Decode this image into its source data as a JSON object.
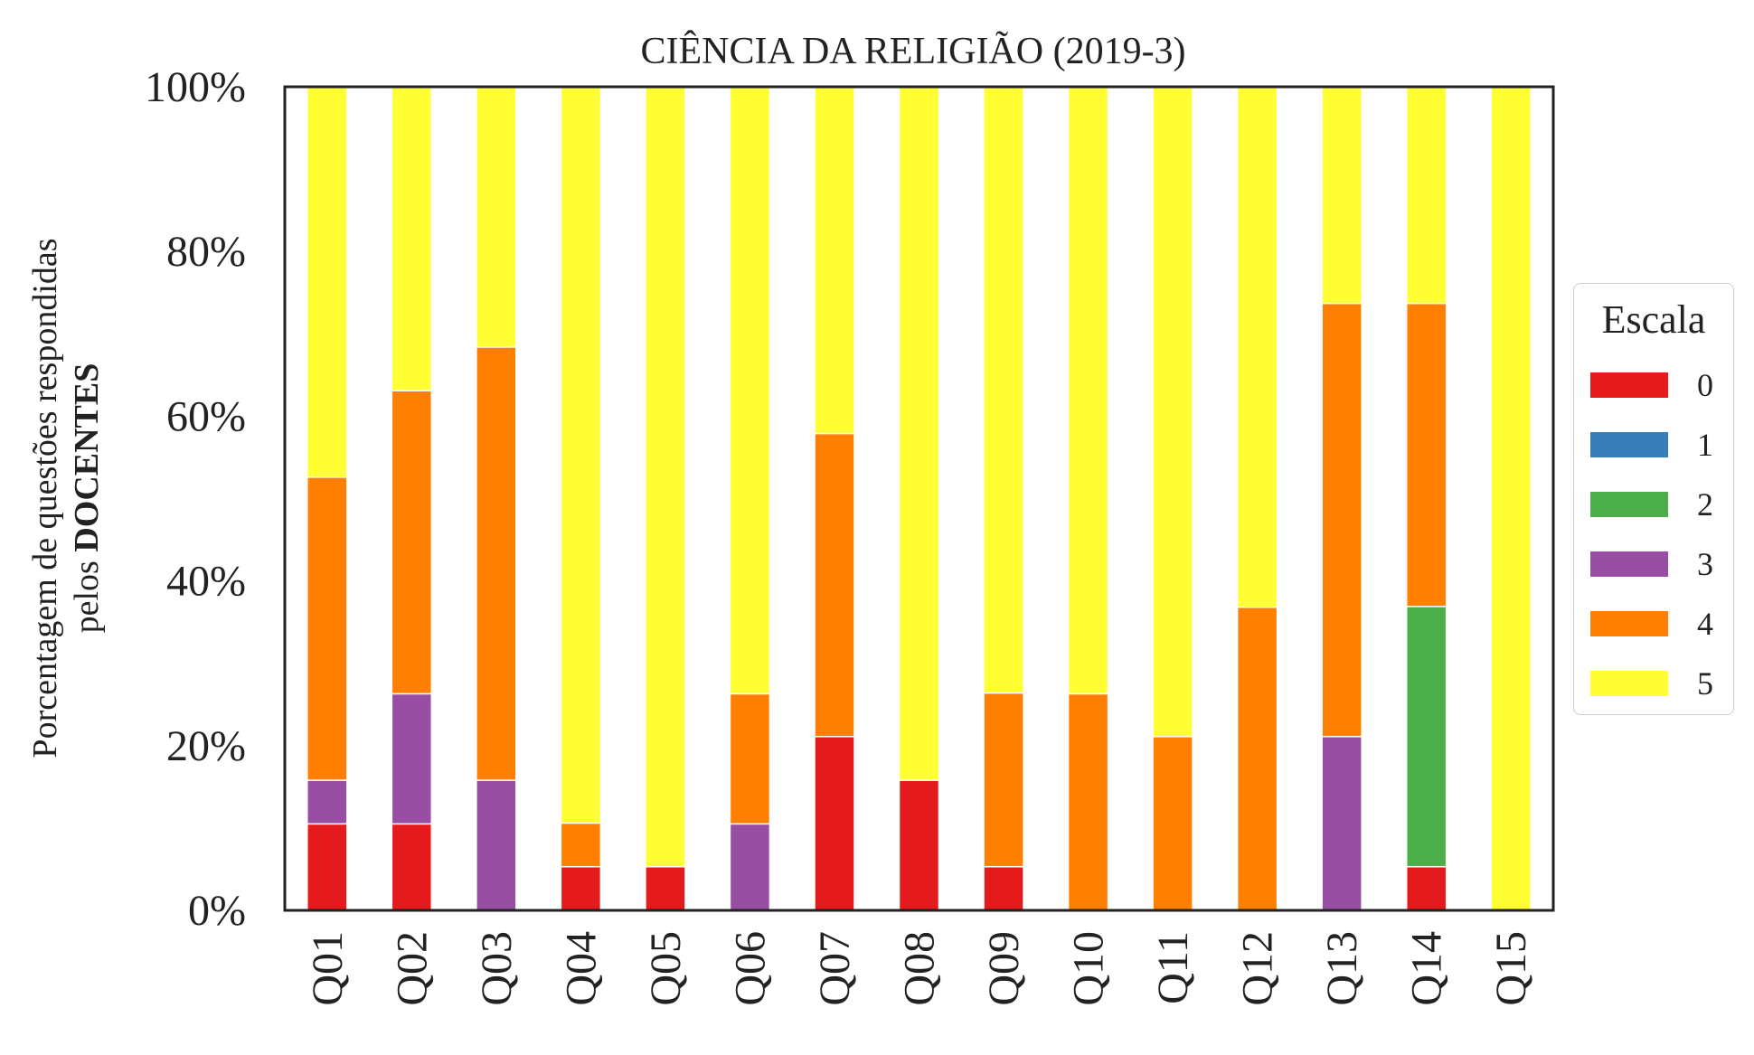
{
  "chart_data": {
    "type": "bar",
    "stacked": true,
    "title": "CIÊNCIA DA RELIGIÃO (2019-3)",
    "ylabel_line1": "Porcentagem de questões respondidas",
    "ylabel_line2_prefix": "pelos ",
    "ylabel_line2_bold": "DOCENTES",
    "ylim": [
      0,
      100
    ],
    "yticks": [
      "0%",
      "20%",
      "40%",
      "60%",
      "80%",
      "100%"
    ],
    "categories": [
      "Q01",
      "Q02",
      "Q03",
      "Q04",
      "Q05",
      "Q06",
      "Q07",
      "Q08",
      "Q09",
      "Q10",
      "Q11",
      "Q12",
      "Q13",
      "Q14",
      "Q15"
    ],
    "legend_title": "Escala",
    "legend_position": "center-right",
    "series": [
      {
        "name": "0",
        "color": "#e41a1c",
        "values": [
          10.5,
          10.5,
          0,
          5.3,
          5.3,
          0,
          21.1,
          15.8,
          5.3,
          0,
          0,
          0,
          0,
          5.3,
          0
        ]
      },
      {
        "name": "1",
        "color": "#377eb8",
        "values": [
          0,
          0,
          0,
          0,
          0,
          0,
          0,
          0,
          0,
          0,
          0,
          0,
          0,
          0,
          0
        ]
      },
      {
        "name": "2",
        "color": "#4daf4a",
        "values": [
          0,
          0,
          0,
          0,
          0,
          0,
          0,
          0,
          0,
          0,
          0,
          0,
          0,
          31.6,
          0
        ]
      },
      {
        "name": "3",
        "color": "#984ea3",
        "values": [
          5.3,
          15.8,
          15.8,
          0,
          0,
          10.5,
          0,
          0,
          0,
          0,
          0,
          0,
          21.1,
          0,
          0
        ]
      },
      {
        "name": "4",
        "color": "#ff7f00",
        "values": [
          36.8,
          36.8,
          52.6,
          5.3,
          0,
          15.8,
          36.8,
          0,
          21.1,
          26.3,
          21.1,
          36.8,
          52.6,
          36.8,
          0
        ]
      },
      {
        "name": "5",
        "color": "#ffff33",
        "values": [
          47.4,
          36.8,
          31.6,
          89.5,
          94.7,
          73.7,
          42.1,
          84.2,
          73.7,
          73.7,
          78.9,
          63.2,
          26.3,
          26.3,
          100
        ]
      }
    ]
  }
}
